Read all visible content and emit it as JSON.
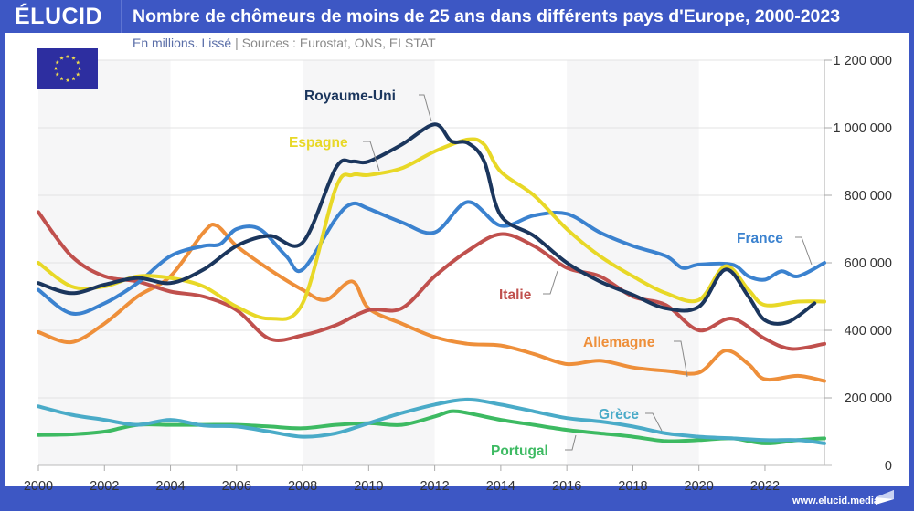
{
  "header": {
    "logo": "ÉLUCID",
    "title": "Nombre de chômeurs de moins de 25 ans dans différents pays d'Europe, 2000-2023",
    "subtitle_unit": "En millions. Lissé",
    "subtitle_separator": "|",
    "subtitle_sources": "Sources : Eurostat, ONS, ELSTAT"
  },
  "footer": {
    "url": "www.elucid.media"
  },
  "flag": {
    "icon": "eu-flag-icon",
    "label": "Union européenne"
  },
  "colors": {
    "brand": "#3d57c4",
    "France": "#3b82cf",
    "Royaume-Uni": "#1b365d",
    "Espagne": "#e8d827",
    "Italie": "#c0504d",
    "Allemagne": "#ee8f3a",
    "Grèce": "#4aabc8",
    "Portugal": "#3dba62"
  },
  "chart_data": {
    "type": "line",
    "title": "Nombre de chômeurs de moins de 25 ans dans différents pays d'Europe, 2000-2023",
    "subtitle": "En millions. Lissé | Sources : Eurostat, ONS, ELSTAT",
    "xlabel": "",
    "ylabel": "",
    "xlim": [
      2000,
      2023.8
    ],
    "ylim": [
      0,
      1200000
    ],
    "x_ticks": [
      2000,
      2002,
      2004,
      2006,
      2008,
      2010,
      2012,
      2014,
      2016,
      2018,
      2020,
      2022
    ],
    "x_tick_labels": [
      "2000",
      "2002",
      "2004",
      "2006",
      "2008",
      "2010",
      "2012",
      "2014",
      "2016",
      "2018",
      "2020",
      "2022"
    ],
    "y_ticks": [
      0,
      200000,
      400000,
      600000,
      800000,
      1000000,
      1200000
    ],
    "y_tick_labels": [
      "0",
      "200 000",
      "400 000",
      "600 000",
      "800 000",
      "1 000 000",
      "1 200 000"
    ],
    "y_axis_side": "right",
    "grid": true,
    "shaded_bands": [
      [
        2000,
        2004
      ],
      [
        2008,
        2012
      ],
      [
        2016,
        2020
      ]
    ],
    "legend": "inline-labels",
    "series": [
      {
        "name": "France",
        "x": [
          2000,
          2001,
          2002,
          2003,
          2004,
          2005,
          2005.5,
          2006,
          2006.7,
          2007.5,
          2008,
          2009,
          2009.5,
          2010,
          2011,
          2012,
          2013,
          2014,
          2015,
          2016,
          2017,
          2018,
          2019,
          2019.5,
          2020,
          2021,
          2021.5,
          2022,
          2022.5,
          2023,
          2023.8
        ],
        "values": [
          520000,
          450000,
          480000,
          540000,
          620000,
          650000,
          655000,
          700000,
          700000,
          620000,
          580000,
          730000,
          775000,
          760000,
          720000,
          690000,
          780000,
          710000,
          740000,
          745000,
          690000,
          650000,
          620000,
          585000,
          595000,
          595000,
          560000,
          550000,
          575000,
          560000,
          600000
        ],
        "label": "France",
        "label_position": "right"
      },
      {
        "name": "Royaume-Uni",
        "x": [
          2000,
          2001,
          2002,
          2003,
          2004,
          2005,
          2006,
          2007,
          2008,
          2009,
          2009.5,
          2010,
          2011,
          2012,
          2012.5,
          2013,
          2013.5,
          2014,
          2015,
          2016,
          2017,
          2018,
          2019,
          2020,
          2020.8,
          2021.5,
          2022,
          2022.7,
          2023.5
        ],
        "values": [
          540000,
          510000,
          535000,
          555000,
          540000,
          580000,
          650000,
          680000,
          660000,
          880000,
          900000,
          900000,
          950000,
          1010000,
          960000,
          955000,
          900000,
          740000,
          680000,
          600000,
          545000,
          505000,
          465000,
          470000,
          580000,
          500000,
          430000,
          425000,
          480000
        ],
        "label": "Royaume-Uni",
        "label_position": "top"
      },
      {
        "name": "Espagne",
        "x": [
          2000,
          2001,
          2002,
          2003,
          2004,
          2005,
          2006,
          2007,
          2008,
          2009,
          2009.5,
          2010,
          2011,
          2012,
          2013,
          2013.5,
          2014,
          2015,
          2016,
          2017,
          2018,
          2019,
          2020,
          2020.8,
          2021.5,
          2022,
          2023,
          2023.8
        ],
        "values": [
          600000,
          530000,
          530000,
          560000,
          555000,
          530000,
          470000,
          435000,
          480000,
          820000,
          860000,
          860000,
          880000,
          930000,
          965000,
          950000,
          870000,
          800000,
          700000,
          620000,
          560000,
          510000,
          490000,
          590000,
          520000,
          475000,
          485000,
          485000
        ],
        "label": "Espagne",
        "label_position": "upper-left"
      },
      {
        "name": "Italie",
        "x": [
          2000,
          2001,
          2002,
          2003,
          2004,
          2005,
          2006,
          2007,
          2008,
          2009,
          2010,
          2011,
          2012,
          2013,
          2014,
          2015,
          2016,
          2017,
          2018,
          2019,
          2020,
          2021,
          2022,
          2022.8,
          2023.8
        ],
        "values": [
          750000,
          620000,
          560000,
          545000,
          515000,
          500000,
          460000,
          375000,
          385000,
          415000,
          460000,
          465000,
          560000,
          635000,
          685000,
          650000,
          585000,
          560000,
          500000,
          475000,
          400000,
          435000,
          375000,
          345000,
          360000
        ],
        "label": "Italie",
        "label_position": "left"
      },
      {
        "name": "Allemagne",
        "x": [
          2000,
          2001,
          2002,
          2003,
          2004,
          2005,
          2005.4,
          2006,
          2007,
          2008,
          2008.7,
          2009.5,
          2010,
          2011,
          2012,
          2013,
          2014,
          2015,
          2016,
          2017,
          2018,
          2019,
          2020,
          2020.8,
          2021.5,
          2022,
          2023,
          2023.8
        ],
        "values": [
          395000,
          365000,
          420000,
          500000,
          560000,
          690000,
          710000,
          650000,
          580000,
          520000,
          490000,
          545000,
          465000,
          420000,
          380000,
          360000,
          355000,
          330000,
          300000,
          310000,
          290000,
          280000,
          275000,
          340000,
          300000,
          255000,
          265000,
          250000
        ],
        "label": "Allemagne",
        "label_position": "upper-left"
      },
      {
        "name": "Grèce",
        "x": [
          2000,
          2001,
          2002,
          2003,
          2004,
          2005,
          2006,
          2007,
          2008,
          2009,
          2010,
          2011,
          2012,
          2013,
          2014,
          2015,
          2016,
          2017,
          2018,
          2019,
          2020,
          2021,
          2022,
          2023,
          2023.8
        ],
        "values": [
          175000,
          150000,
          135000,
          120000,
          135000,
          118000,
          115000,
          100000,
          85000,
          95000,
          125000,
          155000,
          180000,
          195000,
          180000,
          160000,
          140000,
          130000,
          115000,
          95000,
          85000,
          80000,
          75000,
          75000,
          65000
        ],
        "label": "Grèce",
        "label_position": "upper-left"
      },
      {
        "name": "Portugal",
        "x": [
          2000,
          2001,
          2002,
          2003,
          2004,
          2005,
          2006,
          2007,
          2008,
          2009,
          2010,
          2011,
          2012,
          2012.5,
          2013,
          2014,
          2015,
          2016,
          2017,
          2018,
          2019,
          2020,
          2021,
          2022,
          2023,
          2023.8
        ],
        "values": [
          90000,
          92000,
          100000,
          120000,
          120000,
          120000,
          120000,
          115000,
          110000,
          120000,
          125000,
          120000,
          145000,
          160000,
          155000,
          135000,
          120000,
          105000,
          95000,
          85000,
          72000,
          75000,
          80000,
          65000,
          75000,
          80000
        ],
        "label": "Portugal",
        "label_position": "lower-left"
      }
    ]
  }
}
